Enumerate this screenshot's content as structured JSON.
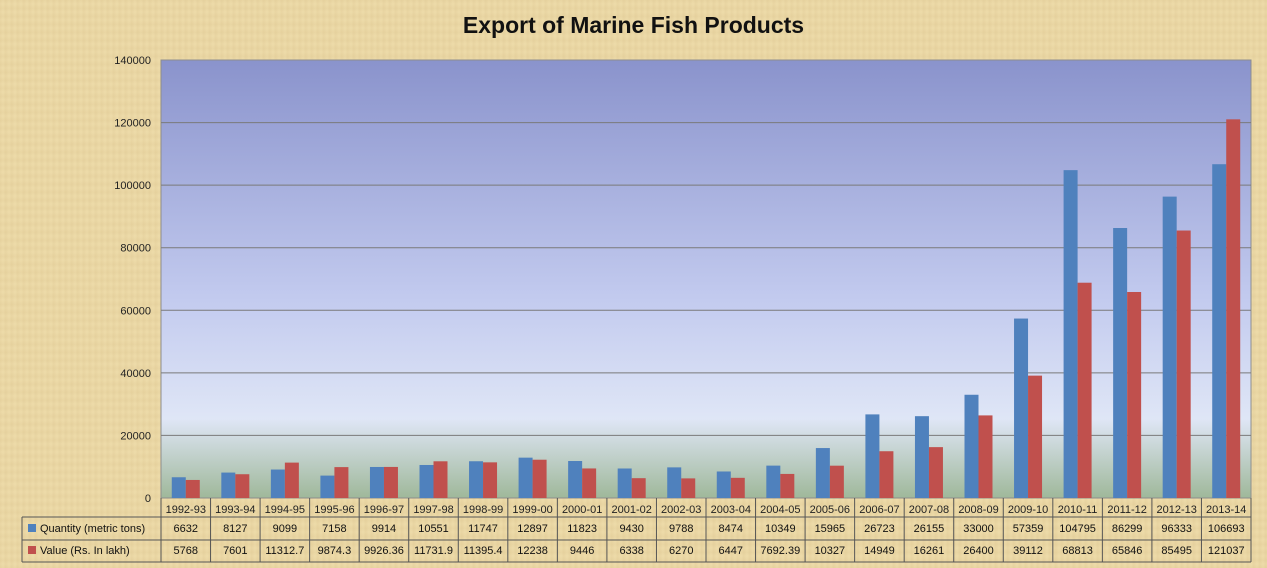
{
  "chart_data": {
    "type": "bar",
    "title": "Export of Marine Fish Products",
    "categories": [
      "1992-93",
      "1993-94",
      "1994-95",
      "1995-96",
      "1996-97",
      "1997-98",
      "1998-99",
      "1999-00",
      "2000-01",
      "2001-02",
      "2002-03",
      "2003-04",
      "2004-05",
      "2005-06",
      "2006-07",
      "2007-08",
      "2008-09",
      "2009-10",
      "2010-11",
      "2011-12",
      "2012-13",
      "2013-14"
    ],
    "series": [
      {
        "name": "Quantity (metric tons)",
        "color": "#4f81bd",
        "values": [
          6632,
          8127,
          9099,
          7158,
          9914,
          10551,
          11747,
          12897,
          11823,
          9430,
          9788,
          8474,
          10349,
          15965,
          26723,
          26155,
          33000,
          57359,
          104795,
          86299,
          96333,
          106693
        ],
        "labels": [
          "6632",
          "8127",
          "9099",
          "7158",
          "9914",
          "10551",
          "11747",
          "12897",
          "11823",
          "9430",
          "9788",
          "8474",
          "10349",
          "15965",
          "26723",
          "26155",
          "33000",
          "57359",
          "104795",
          "86299",
          "96333",
          "106693"
        ]
      },
      {
        "name": "Value   (Rs. In lakh)",
        "color": "#c0504d",
        "values": [
          5768,
          7601,
          11312.7,
          9874.3,
          9926.36,
          11731.9,
          11395.4,
          12238,
          9446,
          6338,
          6270,
          6447,
          7692.39,
          10327,
          14949,
          16261,
          26400,
          39112,
          68813,
          65846,
          85495,
          121037
        ],
        "labels": [
          "5768",
          "7601",
          "11312.7",
          "9874.3",
          "9926.36",
          "11731.9",
          "11395.4",
          "12238",
          "9446",
          "6338",
          "6270",
          "6447",
          "7692.39",
          "10327",
          "14949",
          "16261",
          "26400",
          "39112",
          "68813",
          "65846",
          "85495",
          "121037"
        ]
      }
    ],
    "ylim": [
      0,
      140000
    ],
    "yticks": [
      "0",
      "20000",
      "40000",
      "60000",
      "80000",
      "100000",
      "120000",
      "140000"
    ],
    "grid": true,
    "legend": "data-table"
  }
}
